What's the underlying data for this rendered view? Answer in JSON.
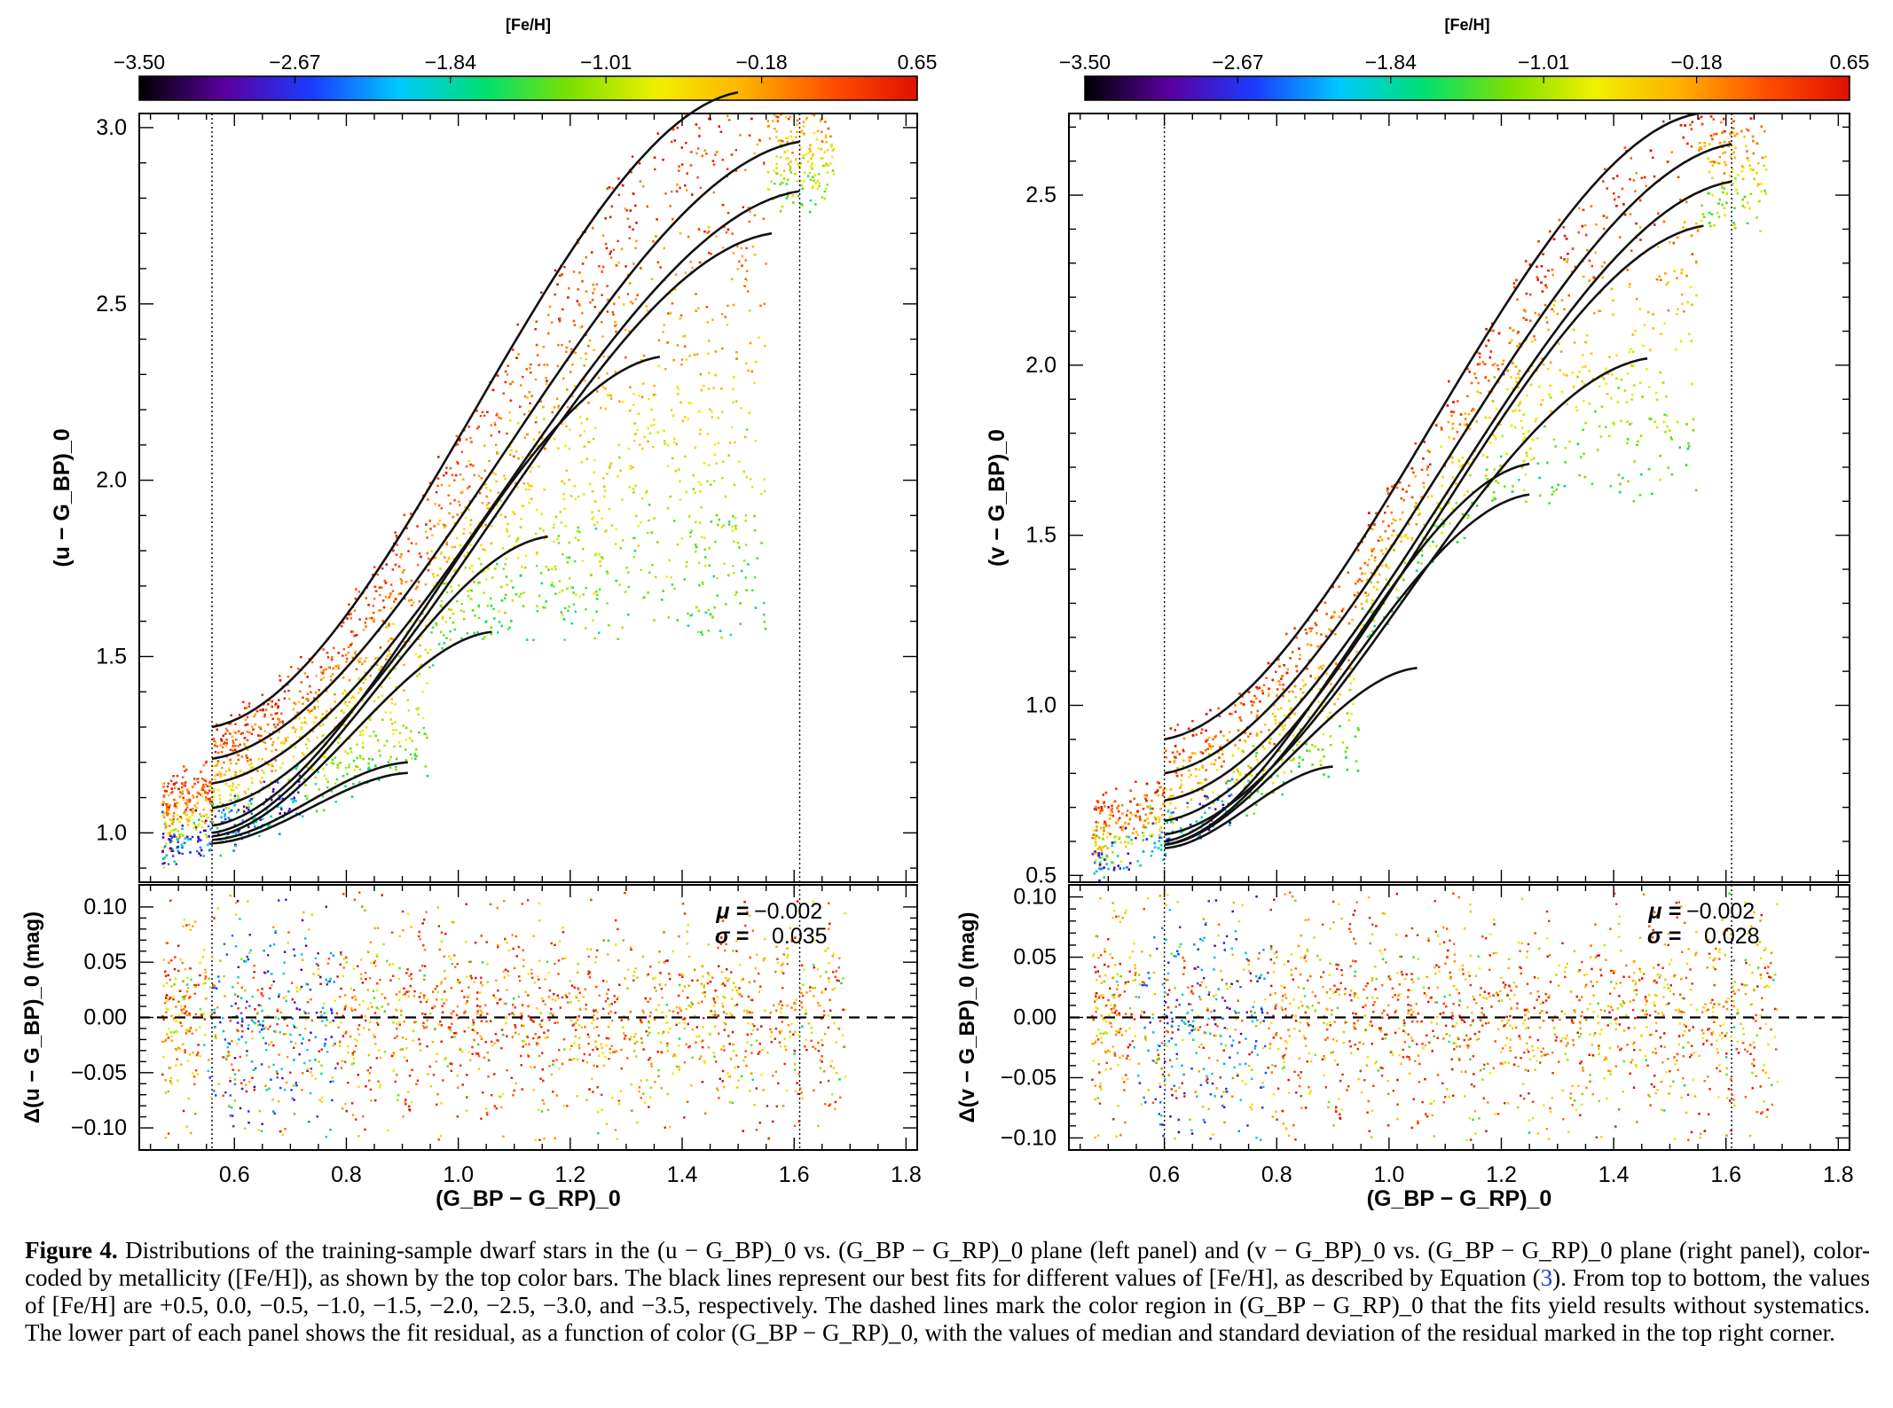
{
  "colorbar": {
    "label": "[Fe/H]",
    "ticks": [
      "−3.50",
      "−2.67",
      "−1.84",
      "−1.01",
      "−0.18",
      "0.65"
    ],
    "range": [
      -3.5,
      0.65
    ],
    "colormap": [
      "#000000",
      "#5a00a0",
      "#1a3cff",
      "#00c8ff",
      "#00e070",
      "#7ee000",
      "#f0f000",
      "#ffb000",
      "#ff5000",
      "#e01000"
    ]
  },
  "chart_data": [
    {
      "type": "scatter",
      "panel": "left",
      "ylabel": "(u − G_BP)_0",
      "xlabel": "(G_BP − G_RP)_0",
      "xlim": [
        0.43,
        1.82
      ],
      "ylim": [
        0.86,
        3.04
      ],
      "x_ticks": [
        "0.6",
        "0.8",
        "1.0",
        "1.2",
        "1.4",
        "1.6",
        "1.8"
      ],
      "y_ticks": [
        "1.0",
        "1.5",
        "2.0",
        "2.5",
        "3.0"
      ],
      "vlines": [
        0.56,
        1.61
      ],
      "fit_curves": {
        "feh": [
          0.5,
          0.0,
          -0.5,
          -1.0,
          -1.5,
          -2.0,
          -2.5,
          -3.0,
          -3.5
        ],
        "x_start": 0.56,
        "y_at_start": [
          1.3,
          1.21,
          1.14,
          1.07,
          1.02,
          1.0,
          0.99,
          0.98,
          0.97
        ],
        "x_end": [
          1.5,
          1.61,
          1.61,
          1.56,
          1.36,
          1.16,
          1.06,
          0.91,
          0.91
        ],
        "y_at_end": [
          3.1,
          2.96,
          2.82,
          2.7,
          2.35,
          1.84,
          1.57,
          1.2,
          1.17
        ]
      },
      "residual": {
        "ylabel": "Δ(u − G_BP)_0 (mag)",
        "ylim": [
          -0.12,
          0.12
        ],
        "y_ticks": [
          "0.10",
          "0.05",
          "0.00",
          "−0.05",
          "−0.10"
        ],
        "zero_line": 0.0,
        "mu_label": "μ =",
        "mu": "−0.002",
        "sigma_label": "σ =",
        "sigma": "0.035"
      }
    },
    {
      "type": "scatter",
      "panel": "right",
      "ylabel": "(v − G_BP)_0",
      "xlabel": "(G_BP − G_RP)_0",
      "xlim": [
        0.43,
        1.82
      ],
      "ylim": [
        0.48,
        2.74
      ],
      "x_ticks": [
        "0.6",
        "0.8",
        "1.0",
        "1.2",
        "1.4",
        "1.6",
        "1.8"
      ],
      "y_ticks": [
        "0.5",
        "1.0",
        "1.5",
        "2.0",
        "2.5"
      ],
      "vlines": [
        0.6,
        1.61
      ],
      "fit_curves": {
        "feh": [
          0.5,
          0.0,
          -0.5,
          -1.0,
          -1.5,
          -2.0,
          -2.5,
          -3.0,
          -3.5
        ],
        "x_start": 0.6,
        "y_at_start": [
          0.9,
          0.8,
          0.72,
          0.66,
          0.62,
          0.6,
          0.59,
          0.59,
          0.58
        ],
        "x_end": [
          1.55,
          1.61,
          1.61,
          1.56,
          1.46,
          1.25,
          1.25,
          1.05,
          0.9
        ],
        "y_at_end": [
          2.74,
          2.65,
          2.54,
          2.41,
          2.02,
          1.71,
          1.62,
          1.11,
          0.82
        ]
      },
      "residual": {
        "ylabel": "Δ(v − G_BP)_0 (mag)",
        "ylim": [
          -0.11,
          0.11
        ],
        "y_ticks": [
          "0.10",
          "0.05",
          "0.00",
          "−0.05",
          "−0.10"
        ],
        "zero_line": 0.0,
        "mu_label": "μ =",
        "mu": "−0.002",
        "sigma_label": "σ =",
        "sigma": "0.028"
      }
    }
  ],
  "caption": {
    "label": "Figure 4.",
    "part1": " Distributions of the training-sample dwarf stars in the (u − G_BP)_0 vs. (G_BP − G_RP)_0 plane (left panel) and (v − G_BP)_0 vs. (G_BP − G_RP)_0 plane (right panel), color-coded by metallicity ([Fe/H]), as shown by the top color bars. The black lines represent our best fits for different values of [Fe/H], as described by Equation (",
    "ref": "3",
    "part2": "). From top to bottom, the values of [Fe/H] are +0.5, 0.0, −0.5, −1.0, −1.5, −2.0, −2.5, −3.0, and −3.5, respectively. The dashed lines mark the color region in (G_BP − G_RP)_0 that the fits yield results without systematics. The lower part of each panel shows the fit residual, as a function of color (G_BP − G_RP)_0, with the values of median and standard deviation of the residual marked in the top right corner."
  }
}
